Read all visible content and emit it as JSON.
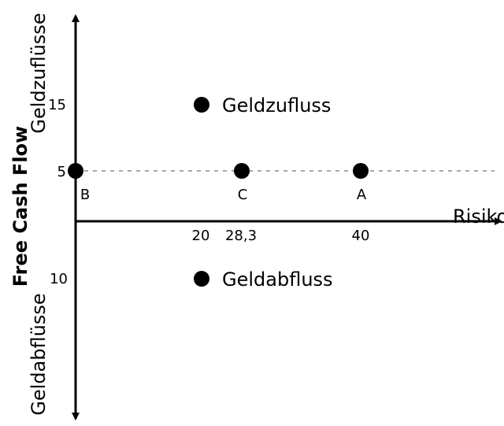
{
  "chart_data": {
    "type": "scatter",
    "title": "",
    "xlabel": "Risiko",
    "ylabel": "Free Cash Flow",
    "ylabel_top": "Geldzuflüsse",
    "ylabel_bottom": "Geldabflüsse",
    "grid": false,
    "reference_line": {
      "y": 5,
      "style": "dashed"
    },
    "x_ticks": [
      "20",
      "28,3",
      "40"
    ],
    "y_ticks": {
      "top": "15",
      "middle": "5",
      "bottom": "10"
    },
    "points": [
      {
        "label": "B",
        "x": 0,
        "y": 5
      },
      {
        "label": "C",
        "x": 28.3,
        "y": 5
      },
      {
        "label": "A",
        "x": 40,
        "y": 5
      },
      {
        "label": "Geldzufluss",
        "x": 20,
        "y": 15
      },
      {
        "label": "Geldabfluss",
        "x": 20,
        "y": -10
      }
    ]
  }
}
